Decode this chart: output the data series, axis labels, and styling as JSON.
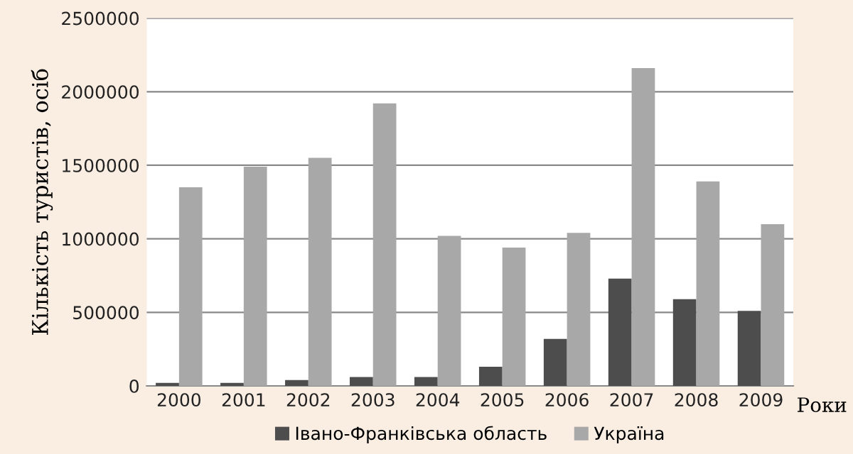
{
  "chart_data": {
    "type": "bar",
    "xlabel": "Роки",
    "ylabel": "Кількість туристів, осіб",
    "categories": [
      "2000",
      "2001",
      "2002",
      "2003",
      "2004",
      "2005",
      "2006",
      "2007",
      "2008",
      "2009"
    ],
    "series": [
      {
        "name": "Івано-Франківська область",
        "color": "#4d4d4d",
        "values": [
          20000,
          20000,
          40000,
          60000,
          60000,
          130000,
          320000,
          730000,
          590000,
          510000
        ]
      },
      {
        "name": "Україна",
        "color": "#a8a8a8",
        "values": [
          1350000,
          1490000,
          1550000,
          1920000,
          1020000,
          940000,
          1040000,
          2160000,
          1390000,
          1100000
        ]
      }
    ],
    "ylim": [
      0,
      2500000
    ],
    "yticks": [
      0,
      500000,
      1000000,
      1500000,
      2000000,
      2500000
    ],
    "grid": "y",
    "legend": "bottom"
  }
}
